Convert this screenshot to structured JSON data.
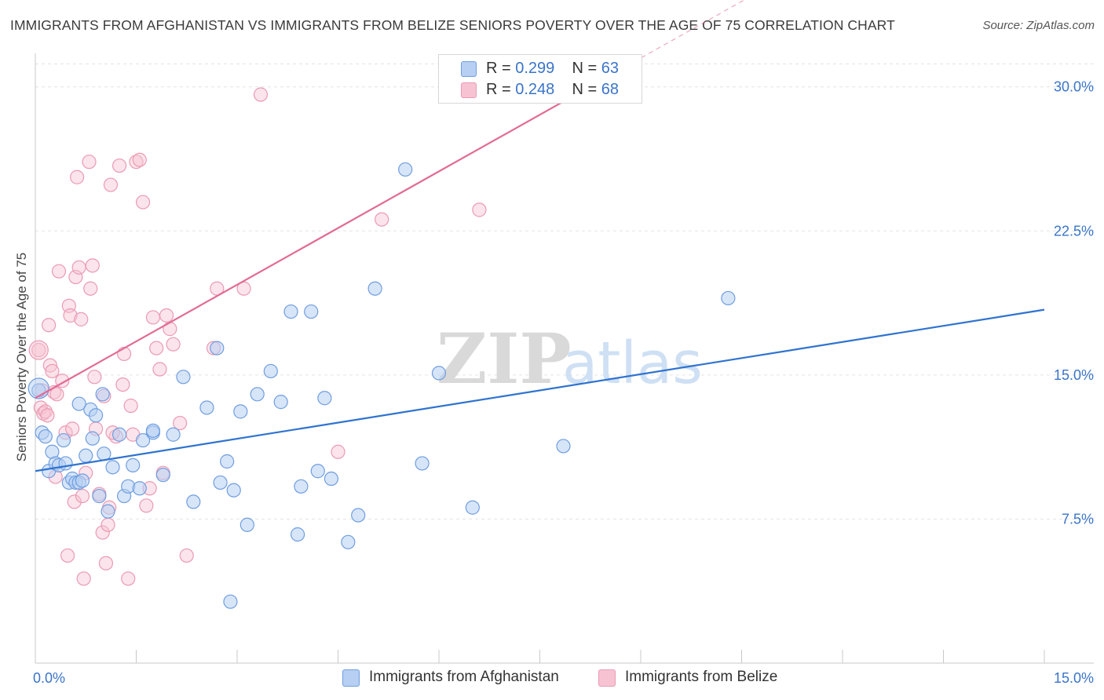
{
  "title": "IMMIGRANTS FROM AFGHANISTAN VS IMMIGRANTS FROM BELIZE SENIORS POVERTY OVER THE AGE OF 75 CORRELATION CHART",
  "source": "Source: ZipAtlas.com",
  "watermark": {
    "zip": "ZIP",
    "atlas": "atlas"
  },
  "colors": {
    "afghanistan_fill": "#b6cff2",
    "afghanistan_stroke": "#6f9ee0",
    "afghanistan_line": "#2f73d0",
    "belize_fill": "#f7c3d3",
    "belize_stroke": "#eb9ab4",
    "belize_line": "#e26b95",
    "tick_label": "#3a74c9",
    "grid": "#e3e3e3"
  },
  "legend": {
    "rows": [
      {
        "r_label": "R =",
        "r_value": "0.299",
        "n_label": "N =",
        "n_value": "63"
      },
      {
        "r_label": "R =",
        "r_value": "0.248",
        "n_label": "N =",
        "n_value": "68"
      }
    ]
  },
  "bottom_legend": [
    "Immigrants from Afghanistan",
    "Immigrants from Belize"
  ],
  "chart_data": {
    "type": "scatter",
    "title": "IMMIGRANTS FROM AFGHANISTAN VS IMMIGRANTS FROM BELIZE SENIORS POVERTY OVER THE AGE OF 75 CORRELATION CHART",
    "xlabel": "",
    "ylabel": "Seniors Poverty Over the Age of 75",
    "xlim": [
      0,
      15
    ],
    "ylim": [
      0,
      31.5
    ],
    "x_tick_labels": [
      {
        "value": 0,
        "label": "0.0%"
      },
      {
        "value": 15,
        "label": "15.0%"
      }
    ],
    "y_tick_labels": [
      {
        "value": 7.5,
        "label": "7.5%"
      },
      {
        "value": 15,
        "label": "15.0%"
      },
      {
        "value": 22.5,
        "label": "22.5%"
      },
      {
        "value": 30,
        "label": "30.0%"
      }
    ],
    "series": [
      {
        "name": "Immigrants from Afghanistan",
        "R": 0.299,
        "N": 63,
        "trend": {
          "x0": 0,
          "y0": 10.0,
          "x1": 15,
          "y1": 18.4,
          "dashed_from": null
        },
        "points": [
          [
            0.05,
            14.2
          ],
          [
            0.1,
            12.0
          ],
          [
            0.15,
            11.8
          ],
          [
            0.2,
            10.0
          ],
          [
            0.25,
            11.0
          ],
          [
            0.3,
            10.4
          ],
          [
            0.35,
            10.3
          ],
          [
            0.42,
            11.6
          ],
          [
            0.45,
            10.4
          ],
          [
            0.5,
            9.4
          ],
          [
            0.55,
            9.6
          ],
          [
            0.6,
            9.4
          ],
          [
            0.65,
            9.4
          ],
          [
            0.75,
            10.8
          ],
          [
            0.82,
            13.2
          ],
          [
            0.85,
            11.7
          ],
          [
            0.9,
            12.9
          ],
          [
            0.95,
            8.7
          ],
          [
            1.0,
            14.0
          ],
          [
            1.02,
            10.9
          ],
          [
            1.08,
            7.9
          ],
          [
            1.15,
            10.2
          ],
          [
            1.25,
            11.9
          ],
          [
            1.32,
            8.7
          ],
          [
            1.38,
            9.2
          ],
          [
            1.45,
            10.3
          ],
          [
            1.55,
            9.1
          ],
          [
            1.6,
            11.6
          ],
          [
            1.75,
            12.0
          ],
          [
            1.9,
            9.8
          ],
          [
            2.05,
            11.9
          ],
          [
            2.2,
            14.9
          ],
          [
            2.35,
            8.4
          ],
          [
            2.55,
            13.3
          ],
          [
            2.7,
            16.4
          ],
          [
            2.75,
            9.4
          ],
          [
            2.85,
            10.5
          ],
          [
            2.95,
            9.0
          ],
          [
            3.05,
            13.1
          ],
          [
            3.15,
            7.2
          ],
          [
            3.3,
            14.0
          ],
          [
            3.5,
            15.2
          ],
          [
            3.65,
            13.6
          ],
          [
            3.8,
            18.3
          ],
          [
            3.9,
            6.7
          ],
          [
            3.95,
            9.2
          ],
          [
            4.1,
            18.3
          ],
          [
            4.2,
            10.0
          ],
          [
            4.3,
            13.8
          ],
          [
            4.4,
            9.6
          ],
          [
            4.65,
            6.3
          ],
          [
            4.8,
            7.7
          ],
          [
            5.05,
            19.5
          ],
          [
            5.5,
            25.7
          ],
          [
            5.75,
            10.4
          ],
          [
            6.0,
            15.1
          ],
          [
            6.5,
            8.1
          ],
          [
            7.85,
            11.3
          ],
          [
            10.3,
            19.0
          ],
          [
            2.9,
            3.2
          ],
          [
            1.75,
            12.1
          ],
          [
            0.7,
            9.5
          ],
          [
            0.65,
            13.5
          ]
        ]
      },
      {
        "name": "Immigrants from Belize",
        "R": 0.248,
        "N": 68,
        "trend": {
          "x0": 0,
          "y0": 13.8,
          "x1": 15,
          "y1": 43.3,
          "solid_until_x": 8.0,
          "dash_until_x": 12.4
        },
        "points": [
          [
            0.05,
            16.3
          ],
          [
            0.08,
            13.3
          ],
          [
            0.1,
            14.2
          ],
          [
            0.12,
            13.0
          ],
          [
            0.15,
            13.1
          ],
          [
            0.18,
            12.9
          ],
          [
            0.2,
            17.6
          ],
          [
            0.22,
            15.5
          ],
          [
            0.25,
            15.2
          ],
          [
            0.28,
            14.1
          ],
          [
            0.3,
            9.7
          ],
          [
            0.32,
            14.0
          ],
          [
            0.35,
            20.4
          ],
          [
            0.4,
            14.7
          ],
          [
            0.45,
            12.0
          ],
          [
            0.48,
            5.6
          ],
          [
            0.5,
            18.6
          ],
          [
            0.52,
            18.1
          ],
          [
            0.55,
            12.2
          ],
          [
            0.58,
            8.4
          ],
          [
            0.6,
            20.1
          ],
          [
            0.62,
            25.3
          ],
          [
            0.65,
            20.6
          ],
          [
            0.68,
            17.9
          ],
          [
            0.7,
            8.7
          ],
          [
            0.72,
            4.4
          ],
          [
            0.75,
            9.9
          ],
          [
            0.8,
            26.1
          ],
          [
            0.82,
            19.5
          ],
          [
            0.85,
            20.7
          ],
          [
            0.88,
            14.9
          ],
          [
            0.9,
            12.2
          ],
          [
            0.95,
            8.8
          ],
          [
            1.0,
            6.8
          ],
          [
            1.02,
            13.9
          ],
          [
            1.05,
            5.2
          ],
          [
            1.08,
            7.2
          ],
          [
            1.1,
            8.1
          ],
          [
            1.12,
            24.9
          ],
          [
            1.2,
            11.8
          ],
          [
            1.25,
            25.9
          ],
          [
            1.3,
            14.5
          ],
          [
            1.32,
            16.1
          ],
          [
            1.38,
            4.4
          ],
          [
            1.42,
            13.4
          ],
          [
            1.45,
            11.9
          ],
          [
            1.5,
            26.1
          ],
          [
            1.55,
            26.2
          ],
          [
            1.6,
            24.0
          ],
          [
            1.65,
            8.2
          ],
          [
            1.7,
            9.1
          ],
          [
            1.75,
            18.0
          ],
          [
            1.8,
            16.4
          ],
          [
            1.85,
            15.3
          ],
          [
            1.9,
            9.9
          ],
          [
            1.95,
            18.1
          ],
          [
            2.0,
            17.4
          ],
          [
            2.05,
            16.6
          ],
          [
            2.15,
            12.5
          ],
          [
            2.25,
            5.6
          ],
          [
            2.65,
            16.4
          ],
          [
            2.7,
            19.5
          ],
          [
            3.1,
            19.5
          ],
          [
            3.35,
            29.6
          ],
          [
            4.5,
            11.0
          ],
          [
            5.15,
            23.1
          ],
          [
            6.6,
            23.6
          ],
          [
            1.15,
            12.0
          ]
        ]
      }
    ]
  }
}
